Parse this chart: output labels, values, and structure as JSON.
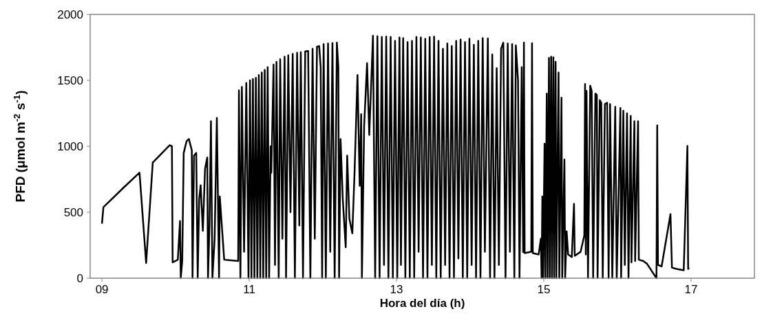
{
  "chart_data": {
    "type": "line",
    "xlabel": "Hora del día (h)",
    "ylabel": "PFD (μmol m$^{-2}$ s$^{-1}$)",
    "xlim": [
      8.84,
      17.86
    ],
    "xticks": [
      {
        "value": 9,
        "label": "09"
      },
      {
        "value": 11,
        "label": "11"
      },
      {
        "value": 13,
        "label": "13"
      },
      {
        "value": 15,
        "label": "15"
      },
      {
        "value": 17,
        "label": "17"
      }
    ],
    "ylim": [
      0,
      2000
    ],
    "yticks": [
      0,
      500,
      1000,
      1500,
      2000
    ],
    "grid": false,
    "marker": "none",
    "line_style": "solid",
    "series": [
      {
        "color": "#000000",
        "x": [
          9.0,
          9.02,
          9.3,
          9.51,
          9.6,
          9.69,
          9.92,
          9.95,
          9.96,
          10.03,
          10.06,
          10.07,
          10.09,
          10.11,
          10.15,
          10.18,
          10.22,
          10.23,
          10.25,
          10.28,
          10.3,
          10.32,
          10.34,
          10.37,
          10.4,
          10.43,
          10.44,
          10.46,
          10.48,
          10.5,
          10.53,
          10.56,
          10.59,
          10.6,
          10.66,
          10.75,
          10.85,
          10.86,
          10.88,
          10.9,
          10.93,
          10.96,
          10.99,
          11.01,
          11.03,
          11.05,
          11.07,
          11.09,
          11.11,
          11.13,
          11.15,
          11.17,
          11.19,
          11.21,
          11.23,
          11.25,
          11.27,
          11.29,
          11.3,
          11.33,
          11.35,
          11.37,
          11.4,
          11.42,
          11.45,
          11.48,
          11.5,
          11.53,
          11.56,
          11.59,
          11.62,
          11.65,
          11.68,
          11.7,
          11.73,
          11.76,
          11.8,
          11.83,
          11.86,
          11.89,
          11.92,
          11.95,
          11.97,
          11.99,
          12.01,
          12.04,
          12.07,
          12.1,
          12.13,
          12.16,
          12.19,
          12.21,
          12.22,
          12.24,
          12.27,
          12.31,
          12.33,
          12.36,
          12.4,
          12.43,
          12.47,
          12.5,
          12.52,
          12.53,
          12.56,
          12.6,
          12.63,
          12.68,
          12.71,
          12.74,
          12.77,
          12.8,
          12.83,
          12.86,
          12.89,
          12.92,
          12.95,
          12.98,
          13.01,
          13.04,
          13.06,
          13.09,
          13.12,
          13.15,
          13.18,
          13.21,
          13.24,
          13.27,
          13.3,
          13.33,
          13.36,
          13.39,
          13.42,
          13.45,
          13.48,
          13.51,
          13.54,
          13.57,
          13.6,
          13.63,
          13.66,
          13.69,
          13.72,
          13.75,
          13.78,
          13.81,
          13.84,
          13.87,
          13.9,
          13.93,
          13.96,
          13.99,
          14.02,
          14.05,
          14.08,
          14.11,
          14.14,
          14.17,
          14.2,
          14.24,
          14.27,
          14.3,
          14.33,
          14.36,
          14.39,
          14.42,
          14.45,
          14.48,
          14.51,
          14.54,
          14.57,
          14.6,
          14.62,
          14.65,
          14.67,
          14.7,
          14.72,
          14.73,
          14.74,
          14.83,
          14.84,
          14.85,
          14.93,
          14.96,
          14.97,
          14.98,
          14.99,
          15.01,
          15.02,
          15.04,
          15.05,
          15.07,
          15.08,
          15.1,
          15.11,
          15.13,
          15.14,
          15.16,
          15.17,
          15.2,
          15.21,
          15.24,
          15.25,
          15.28,
          15.29,
          15.31,
          15.33,
          15.38,
          15.41,
          15.42,
          15.5,
          15.55,
          15.56,
          15.57,
          15.58,
          15.6,
          15.63,
          15.65,
          15.67,
          15.7,
          15.72,
          15.73,
          15.76,
          15.78,
          15.8,
          15.83,
          15.86,
          15.88,
          15.9,
          15.93,
          15.97,
          15.99,
          16.04,
          16.05,
          16.08,
          16.1,
          16.13,
          16.15,
          16.18,
          16.19,
          16.23,
          16.24,
          16.28,
          16.29,
          16.35,
          16.4,
          16.53,
          16.54,
          16.55,
          16.6,
          16.72,
          16.74,
          16.8,
          16.9,
          16.95,
          16.96,
          16.97
        ],
        "values": [
          413,
          538,
          690,
          800,
          115,
          877,
          1008,
          1000,
          120,
          140,
          433,
          0,
          130,
          950,
          1040,
          1055,
          970,
          0,
          930,
          950,
          0,
          600,
          705,
          360,
          830,
          915,
          0,
          400,
          1190,
          0,
          300,
          1215,
          0,
          620,
          140,
          135,
          130,
          1425,
          0,
          1450,
          200,
          1480,
          0,
          1500,
          0,
          1510,
          0,
          1520,
          0,
          1540,
          0,
          1560,
          0,
          1580,
          0,
          1600,
          0,
          1000,
          800,
          1620,
          100,
          1640,
          0,
          1660,
          300,
          1680,
          0,
          1690,
          500,
          1700,
          0,
          1710,
          400,
          1713,
          0,
          1720,
          1723,
          0,
          1740,
          300,
          1755,
          1760,
          1600,
          0,
          1775,
          0,
          1780,
          200,
          1783,
          0,
          1786,
          1600,
          0,
          1055,
          600,
          235,
          930,
          450,
          340,
          800,
          1540,
          700,
          1243,
          0,
          1150,
          1630,
          1086,
          1838,
          0,
          1835,
          0,
          1830,
          100,
          1832,
          0,
          1830,
          0,
          1800,
          0,
          1825,
          100,
          1820,
          0,
          1790,
          0,
          1800,
          0,
          1830,
          200,
          1825,
          0,
          1815,
          0,
          1828,
          100,
          1832,
          0,
          1800,
          0,
          1740,
          100,
          1780,
          0,
          1760,
          0,
          1800,
          150,
          1810,
          0,
          1790,
          0,
          1815,
          100,
          1770,
          0,
          1800,
          0,
          1820,
          200,
          1818,
          0,
          1697,
          0,
          1593,
          100,
          1740,
          1786,
          0,
          1780,
          200,
          1775,
          0,
          1765,
          1500,
          0,
          1600,
          198,
          1786,
          190,
          200,
          1781,
          190,
          180,
          300,
          0,
          620,
          0,
          1020,
          0,
          1400,
          0,
          1671,
          0,
          1680,
          0,
          1675,
          0,
          1640,
          0,
          1560,
          0,
          1368,
          0,
          900,
          0,
          355,
          180,
          160,
          564,
          170,
          200,
          324,
          1473,
          180,
          1420,
          0,
          1460,
          1420,
          0,
          1400,
          1390,
          0,
          1350,
          1330,
          0,
          1320,
          1330,
          0,
          1320,
          0,
          1300,
          0,
          1290,
          0,
          1270,
          100,
          1250,
          0,
          1230,
          120,
          1190,
          130,
          1190,
          140,
          130,
          110,
          0,
          1159,
          100,
          90,
          486,
          80,
          70,
          60,
          1003,
          70,
          80
        ]
      }
    ]
  }
}
